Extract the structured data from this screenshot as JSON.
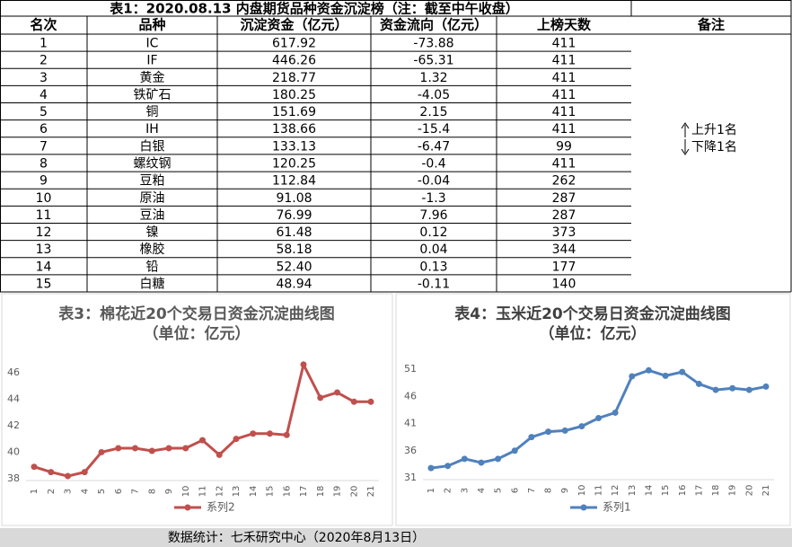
{
  "table": {
    "title": "表1：2020.08.13 内盘期货品种资金沉淀榜（注：截至中午收盘）",
    "columns": [
      "名次",
      "品种",
      "沉淀资金（亿元）",
      "资金流向（亿元）",
      "上榜天数",
      "备注"
    ],
    "rows": [
      [
        "1",
        "IC",
        "617.92",
        "-73.88",
        "411"
      ],
      [
        "2",
        "IF",
        "446.26",
        "-65.31",
        "411"
      ],
      [
        "3",
        "黄金",
        "218.77",
        "1.32",
        "411"
      ],
      [
        "4",
        "铁矿石",
        "180.25",
        "-4.05",
        "411"
      ],
      [
        "5",
        "铜",
        "151.69",
        "2.15",
        "411"
      ],
      [
        "6",
        "IH",
        "138.66",
        "-15.4",
        "411"
      ],
      [
        "7",
        "白银",
        "133.13",
        "-6.47",
        "99"
      ],
      [
        "8",
        "螺纹钢",
        "120.25",
        "-0.4",
        "411"
      ],
      [
        "9",
        "豆粕",
        "112.84",
        "-0.04",
        "262"
      ],
      [
        "10",
        "原油",
        "91.08",
        "-1.3",
        "287"
      ],
      [
        "11",
        "豆油",
        "76.99",
        "7.96",
        "287"
      ],
      [
        "12",
        "镍",
        "61.48",
        "0.12",
        "373"
      ],
      [
        "13",
        "橡胶",
        "58.18",
        "0.04",
        "344"
      ],
      [
        "14",
        "铅",
        "52.40",
        "0.13",
        "177"
      ],
      [
        "15",
        "白糖",
        "48.94",
        "-0.11",
        "140"
      ]
    ],
    "notes": {
      "up": "上升1名",
      "down": "下降1名"
    }
  },
  "charts": [
    {
      "type": "line",
      "title": "表3：棉花近20个交易日资金沉淀曲线图",
      "subtitle": "（单位：亿元）",
      "categories": [
        "1",
        "2",
        "3",
        "4",
        "5",
        "6",
        "7",
        "8",
        "9",
        "10",
        "11",
        "12",
        "13",
        "14",
        "15",
        "16",
        "17",
        "18",
        "19",
        "20",
        "21"
      ],
      "series": [
        {
          "name": "系列2",
          "color": "#c0504d",
          "values": [
            38.9,
            38.5,
            38.2,
            38.5,
            40.0,
            40.3,
            40.3,
            40.1,
            40.3,
            40.3,
            40.9,
            39.8,
            41.0,
            41.4,
            41.4,
            41.3,
            46.6,
            44.1,
            44.5,
            43.8,
            43.8
          ]
        }
      ],
      "ylim": [
        38,
        47
      ],
      "yticks": [
        38,
        40,
        42,
        44,
        46
      ]
    },
    {
      "type": "line",
      "title": "表4：玉米近20个交易日资金沉淀曲线图",
      "subtitle": "（单位：亿元）",
      "categories": [
        "1",
        "2",
        "3",
        "4",
        "5",
        "6",
        "7",
        "8",
        "9",
        "10",
        "11",
        "12",
        "13",
        "14",
        "15",
        "16",
        "17",
        "18",
        "19",
        "20",
        "21"
      ],
      "series": [
        {
          "name": "系列1",
          "color": "#4f81bd",
          "values": [
            32.8,
            33.2,
            34.5,
            33.8,
            34.5,
            36.0,
            38.5,
            39.5,
            39.7,
            40.5,
            42.0,
            43.0,
            49.7,
            50.8,
            49.8,
            50.5,
            48.3,
            47.2,
            47.5,
            47.2,
            47.8
          ]
        }
      ],
      "ylim": [
        31,
        53
      ],
      "yticks": [
        31,
        36,
        41,
        46,
        51
      ]
    }
  ],
  "footer": "数据统计：七禾研究中心（2020年8月13日）"
}
